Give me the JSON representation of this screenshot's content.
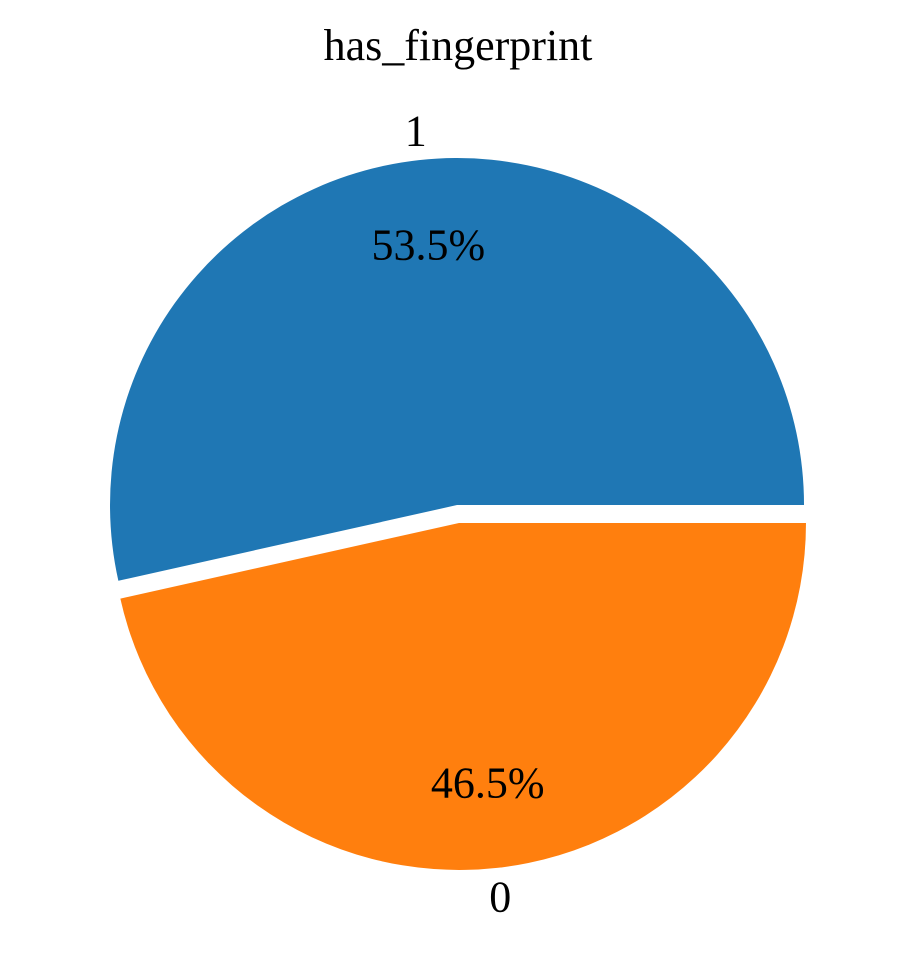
{
  "chart_data": {
    "type": "pie",
    "title": "has_fingerprint",
    "slices": [
      {
        "label": "1",
        "value": 53.5,
        "pct_label": "53.5%",
        "color": "#1f77b4"
      },
      {
        "label": "0",
        "value": 46.5,
        "pct_label": "46.5%",
        "color": "#ff7f0e"
      }
    ]
  }
}
